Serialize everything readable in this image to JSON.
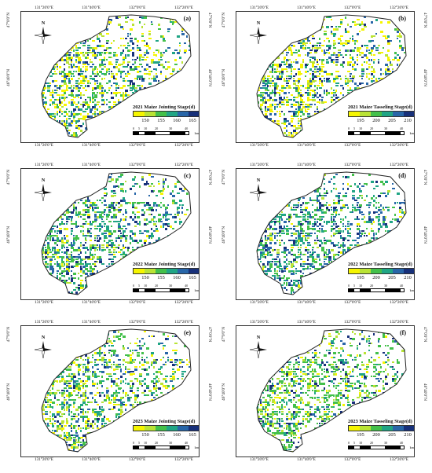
{
  "colors": {
    "ramp": [
      "#f5f500",
      "#b9e335",
      "#43c04a",
      "#20a585",
      "#2866a8",
      "#17307a"
    ],
    "boundary": "#222222"
  },
  "panels": [
    {
      "label": "(a)",
      "title": "2021 Maize Jointing Stage(d)",
      "ticks": [
        "150",
        "155",
        "160",
        "165"
      ],
      "seed": 11,
      "mix": [
        0.28,
        0.14,
        0.16,
        0.18,
        0.16,
        0.08
      ]
    },
    {
      "label": "(b)",
      "title": "2021 Maize Tasseling Stage(d)",
      "ticks": [
        "195",
        "200",
        "205",
        "210"
      ],
      "seed": 23,
      "mix": [
        0.34,
        0.14,
        0.1,
        0.14,
        0.18,
        0.1
      ]
    },
    {
      "label": "(c)",
      "title": "2022 Maize Jointing Stage(d)",
      "ticks": [
        "150",
        "155",
        "160",
        "165"
      ],
      "seed": 37,
      "mix": [
        0.06,
        0.1,
        0.26,
        0.26,
        0.2,
        0.12
      ]
    },
    {
      "label": "(d)",
      "title": "2022 Maize Tasseling Stage(d)",
      "ticks": [
        "195",
        "200",
        "205",
        "210"
      ],
      "seed": 41,
      "mix": [
        0.04,
        0.08,
        0.24,
        0.3,
        0.22,
        0.12
      ]
    },
    {
      "label": "(e)",
      "title": "2023 Maize Jointing Stage(d)",
      "ticks": [
        "150",
        "155",
        "160",
        "165"
      ],
      "seed": 53,
      "mix": [
        0.16,
        0.22,
        0.22,
        0.2,
        0.12,
        0.08
      ]
    },
    {
      "label": "(f)",
      "title": "2023 Maize Tasseling Stage(d)",
      "ticks": [
        "195",
        "200",
        "205",
        "210"
      ],
      "seed": 67,
      "mix": [
        0.08,
        0.16,
        0.42,
        0.16,
        0.1,
        0.08
      ]
    }
  ],
  "lon_ticks": [
    "131°20'0\"E",
    "131°40'0\"E",
    "132°0'0\"E",
    "132°20'0\"E"
  ],
  "lat_ticks": [
    "47°0'0\"N",
    "46°40'0\"N"
  ],
  "north_label": "N",
  "scale": {
    "marks": [
      "0",
      "5",
      "10",
      "20",
      "30",
      "40"
    ],
    "unit": "km"
  }
}
